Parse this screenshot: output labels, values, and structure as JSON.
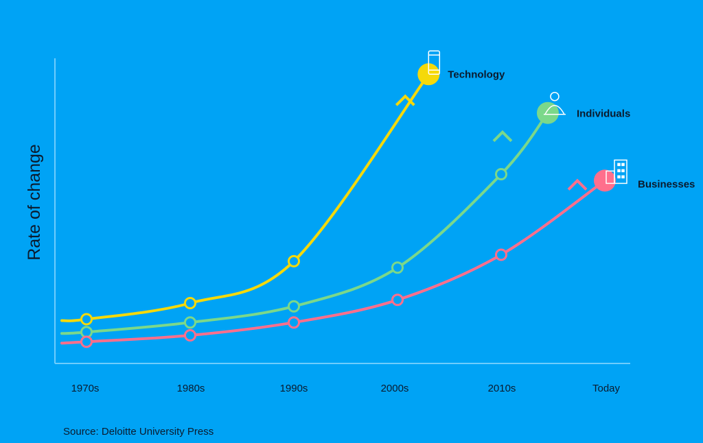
{
  "chart_data": {
    "type": "line",
    "title": "",
    "xlabel": "",
    "ylabel": "Rate of change",
    "categories": [
      "1970s",
      "1980s",
      "1990s",
      "2000s",
      "2010s",
      "Today"
    ],
    "ylim": [
      0,
      100
    ],
    "grid": false,
    "y_ticks_shown": false,
    "series": [
      {
        "name": "Technology",
        "color": "#f5d90a",
        "icon": "smartphone-icon",
        "points": [
          [
            0,
            15
          ],
          [
            1,
            20
          ],
          [
            2,
            33
          ],
          [
            3.3,
            91
          ]
        ],
        "markers": [
          [
            0,
            15
          ],
          [
            1,
            20
          ],
          [
            2,
            33
          ]
        ]
      },
      {
        "name": "Individuals",
        "color": "#7bd88a",
        "icon": "person-icon",
        "points": [
          [
            0,
            11
          ],
          [
            1,
            14
          ],
          [
            2,
            19
          ],
          [
            3,
            31
          ],
          [
            4,
            60
          ],
          [
            4.45,
            79
          ]
        ],
        "markers": [
          [
            0,
            11
          ],
          [
            1,
            14
          ],
          [
            2,
            19
          ],
          [
            3,
            31
          ],
          [
            4,
            60
          ]
        ]
      },
      {
        "name": "Businesses",
        "color": "#ff6f8c",
        "icon": "building-icon",
        "points": [
          [
            0,
            8
          ],
          [
            1,
            10
          ],
          [
            2,
            14
          ],
          [
            3,
            21
          ],
          [
            4,
            35
          ],
          [
            5,
            58
          ]
        ],
        "markers": [
          [
            0,
            8
          ],
          [
            1,
            10
          ],
          [
            2,
            14
          ],
          [
            3,
            21
          ],
          [
            4,
            35
          ]
        ]
      }
    ],
    "source": "Source: Deloitte University Press"
  }
}
